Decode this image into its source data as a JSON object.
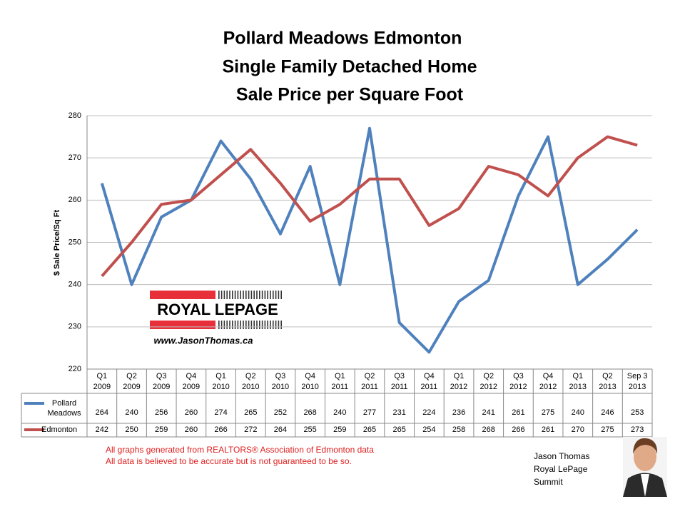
{
  "chart_data": {
    "type": "line",
    "title": [
      "Pollard Meadows Edmonton",
      "Single Family Detached Home",
      "Sale Price per Square Foot"
    ],
    "y_label": "$ Sale Price/Sq Ft",
    "categories": [
      [
        "Q1",
        "2009"
      ],
      [
        "Q2",
        "2009"
      ],
      [
        "Q3",
        "2009"
      ],
      [
        "Q4",
        "2009"
      ],
      [
        "Q1",
        "2010"
      ],
      [
        "Q2",
        "2010"
      ],
      [
        "Q3",
        "2010"
      ],
      [
        "Q4",
        "2010"
      ],
      [
        "Q1",
        "2011"
      ],
      [
        "Q2",
        "2011"
      ],
      [
        "Q3",
        "2011"
      ],
      [
        "Q4",
        "2011"
      ],
      [
        "Q1",
        "2012"
      ],
      [
        "Q2",
        "2012"
      ],
      [
        "Q3",
        "2012"
      ],
      [
        "Q4",
        "2012"
      ],
      [
        "Q1",
        "2013"
      ],
      [
        "Q2",
        "2013"
      ],
      [
        "Sep 3",
        "2013"
      ]
    ],
    "series": [
      {
        "name": "Pollard Meadows",
        "color": "#4f81bd",
        "values": [
          264,
          240,
          256,
          260,
          274,
          265,
          252,
          268,
          240,
          277,
          231,
          224,
          236,
          241,
          261,
          275,
          240,
          246,
          253
        ]
      },
      {
        "name": "Edmonton",
        "color": "#c0504d",
        "values": [
          242,
          250,
          259,
          260,
          266,
          272,
          264,
          255,
          259,
          265,
          265,
          254,
          258,
          268,
          266,
          261,
          270,
          275,
          273
        ]
      }
    ],
    "ylim": [
      220,
      280
    ],
    "yticks": [
      220,
      230,
      240,
      250,
      260,
      270,
      280
    ],
    "grid": true,
    "logo": {
      "brand": "ROYAL LEPAGE",
      "url": "www.JasonThomas.ca"
    },
    "footer": [
      "All graphs generated from REALTORS® Association of Edmonton data",
      "All data is believed to be accurate but is not guaranteed to be so."
    ],
    "agent": [
      "Jason Thomas",
      "Royal LePage",
      "Summit"
    ]
  }
}
